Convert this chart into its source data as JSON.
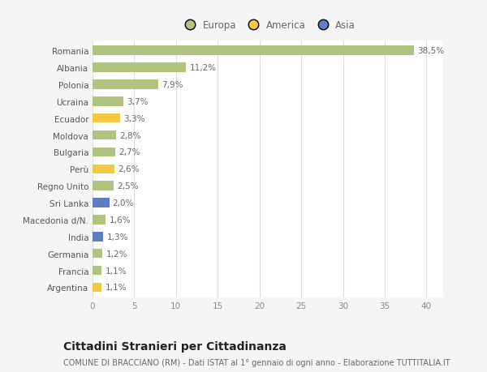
{
  "countries": [
    "Romania",
    "Albania",
    "Polonia",
    "Ucraina",
    "Ecuador",
    "Moldova",
    "Bulgaria",
    "Perù",
    "Regno Unito",
    "Sri Lanka",
    "Macedonia d/N.",
    "India",
    "Germania",
    "Francia",
    "Argentina"
  ],
  "values": [
    38.5,
    11.2,
    7.9,
    3.7,
    3.3,
    2.8,
    2.7,
    2.6,
    2.5,
    2.0,
    1.6,
    1.3,
    1.2,
    1.1,
    1.1
  ],
  "labels": [
    "38,5%",
    "11,2%",
    "7,9%",
    "3,7%",
    "3,3%",
    "2,8%",
    "2,7%",
    "2,6%",
    "2,5%",
    "2,0%",
    "1,6%",
    "1,3%",
    "1,2%",
    "1,1%",
    "1,1%"
  ],
  "continents": [
    "Europa",
    "Europa",
    "Europa",
    "Europa",
    "America",
    "Europa",
    "Europa",
    "America",
    "Europa",
    "Asia",
    "Europa",
    "Asia",
    "Europa",
    "Europa",
    "America"
  ],
  "colors": {
    "Europa": "#aec47f",
    "America": "#f5c842",
    "Asia": "#5b7fc1"
  },
  "xlim": [
    0,
    42
  ],
  "xticks": [
    0,
    5,
    10,
    15,
    20,
    25,
    30,
    35,
    40
  ],
  "title": "Cittadini Stranieri per Cittadinanza",
  "subtitle": "COMUNE DI BRACCIANO (RM) - Dati ISTAT al 1° gennaio di ogni anno - Elaborazione TUTTITALIA.IT",
  "background_color": "#f5f5f5",
  "plot_bg_color": "#ffffff",
  "grid_color": "#dddddd",
  "bar_height": 0.55,
  "label_fontsize": 7.5,
  "tick_fontsize": 7.5,
  "title_fontsize": 10,
  "subtitle_fontsize": 7
}
